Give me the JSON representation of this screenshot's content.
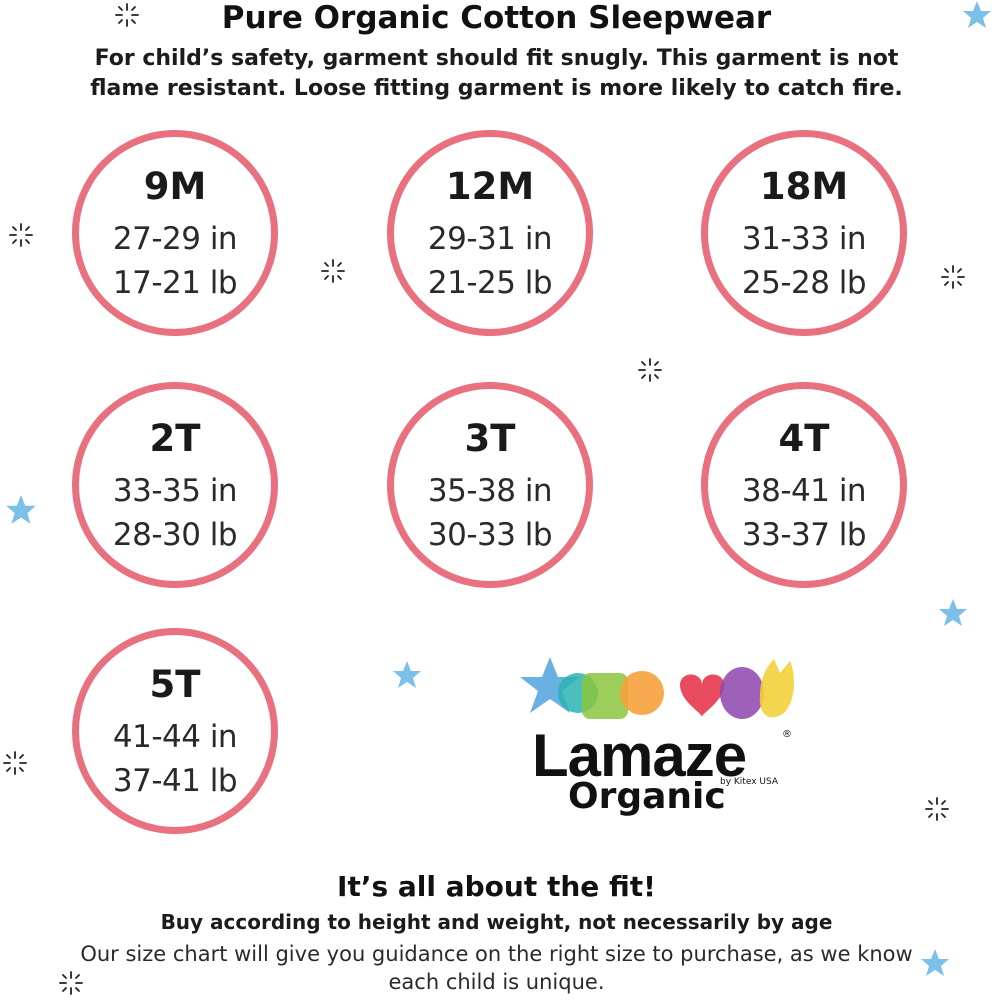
{
  "header": {
    "title": "Pure Organic Cotton Sleepwear",
    "warning": "For child’s safety, garment should fit snugly. This garment is not flame resistant. Loose fitting garment is more likely to catch fire."
  },
  "sizes": [
    {
      "size": "9M",
      "height": "27-29 in",
      "weight": "17-21 lb"
    },
    {
      "size": "12M",
      "height": "29-31 in",
      "weight": "21-25 lb"
    },
    {
      "size": "18M",
      "height": "31-33 in",
      "weight": "25-28 lb"
    },
    {
      "size": "2T",
      "height": "33-35 in",
      "weight": "28-30 lb"
    },
    {
      "size": "3T",
      "height": "35-38 in",
      "weight": "30-33 lb"
    },
    {
      "size": "4T",
      "height": "38-41 in",
      "weight": "33-37 lb"
    },
    {
      "size": "5T",
      "height": "41-44 in",
      "weight": "37-41 lb"
    }
  ],
  "logo": {
    "name": "Lamaze",
    "registered": "®",
    "by": "by Kitex USA",
    "line2": "Organic"
  },
  "footer": {
    "title": "It’s all about the fit!",
    "subtitle": "Buy according to height and weight, not necessarily by age",
    "description": "Our size chart will give you guidance on the right size to purchase, as we know each child is unique."
  },
  "colors": {
    "circle_border": "#e8707f",
    "star_blue": "#7cc0ea"
  }
}
